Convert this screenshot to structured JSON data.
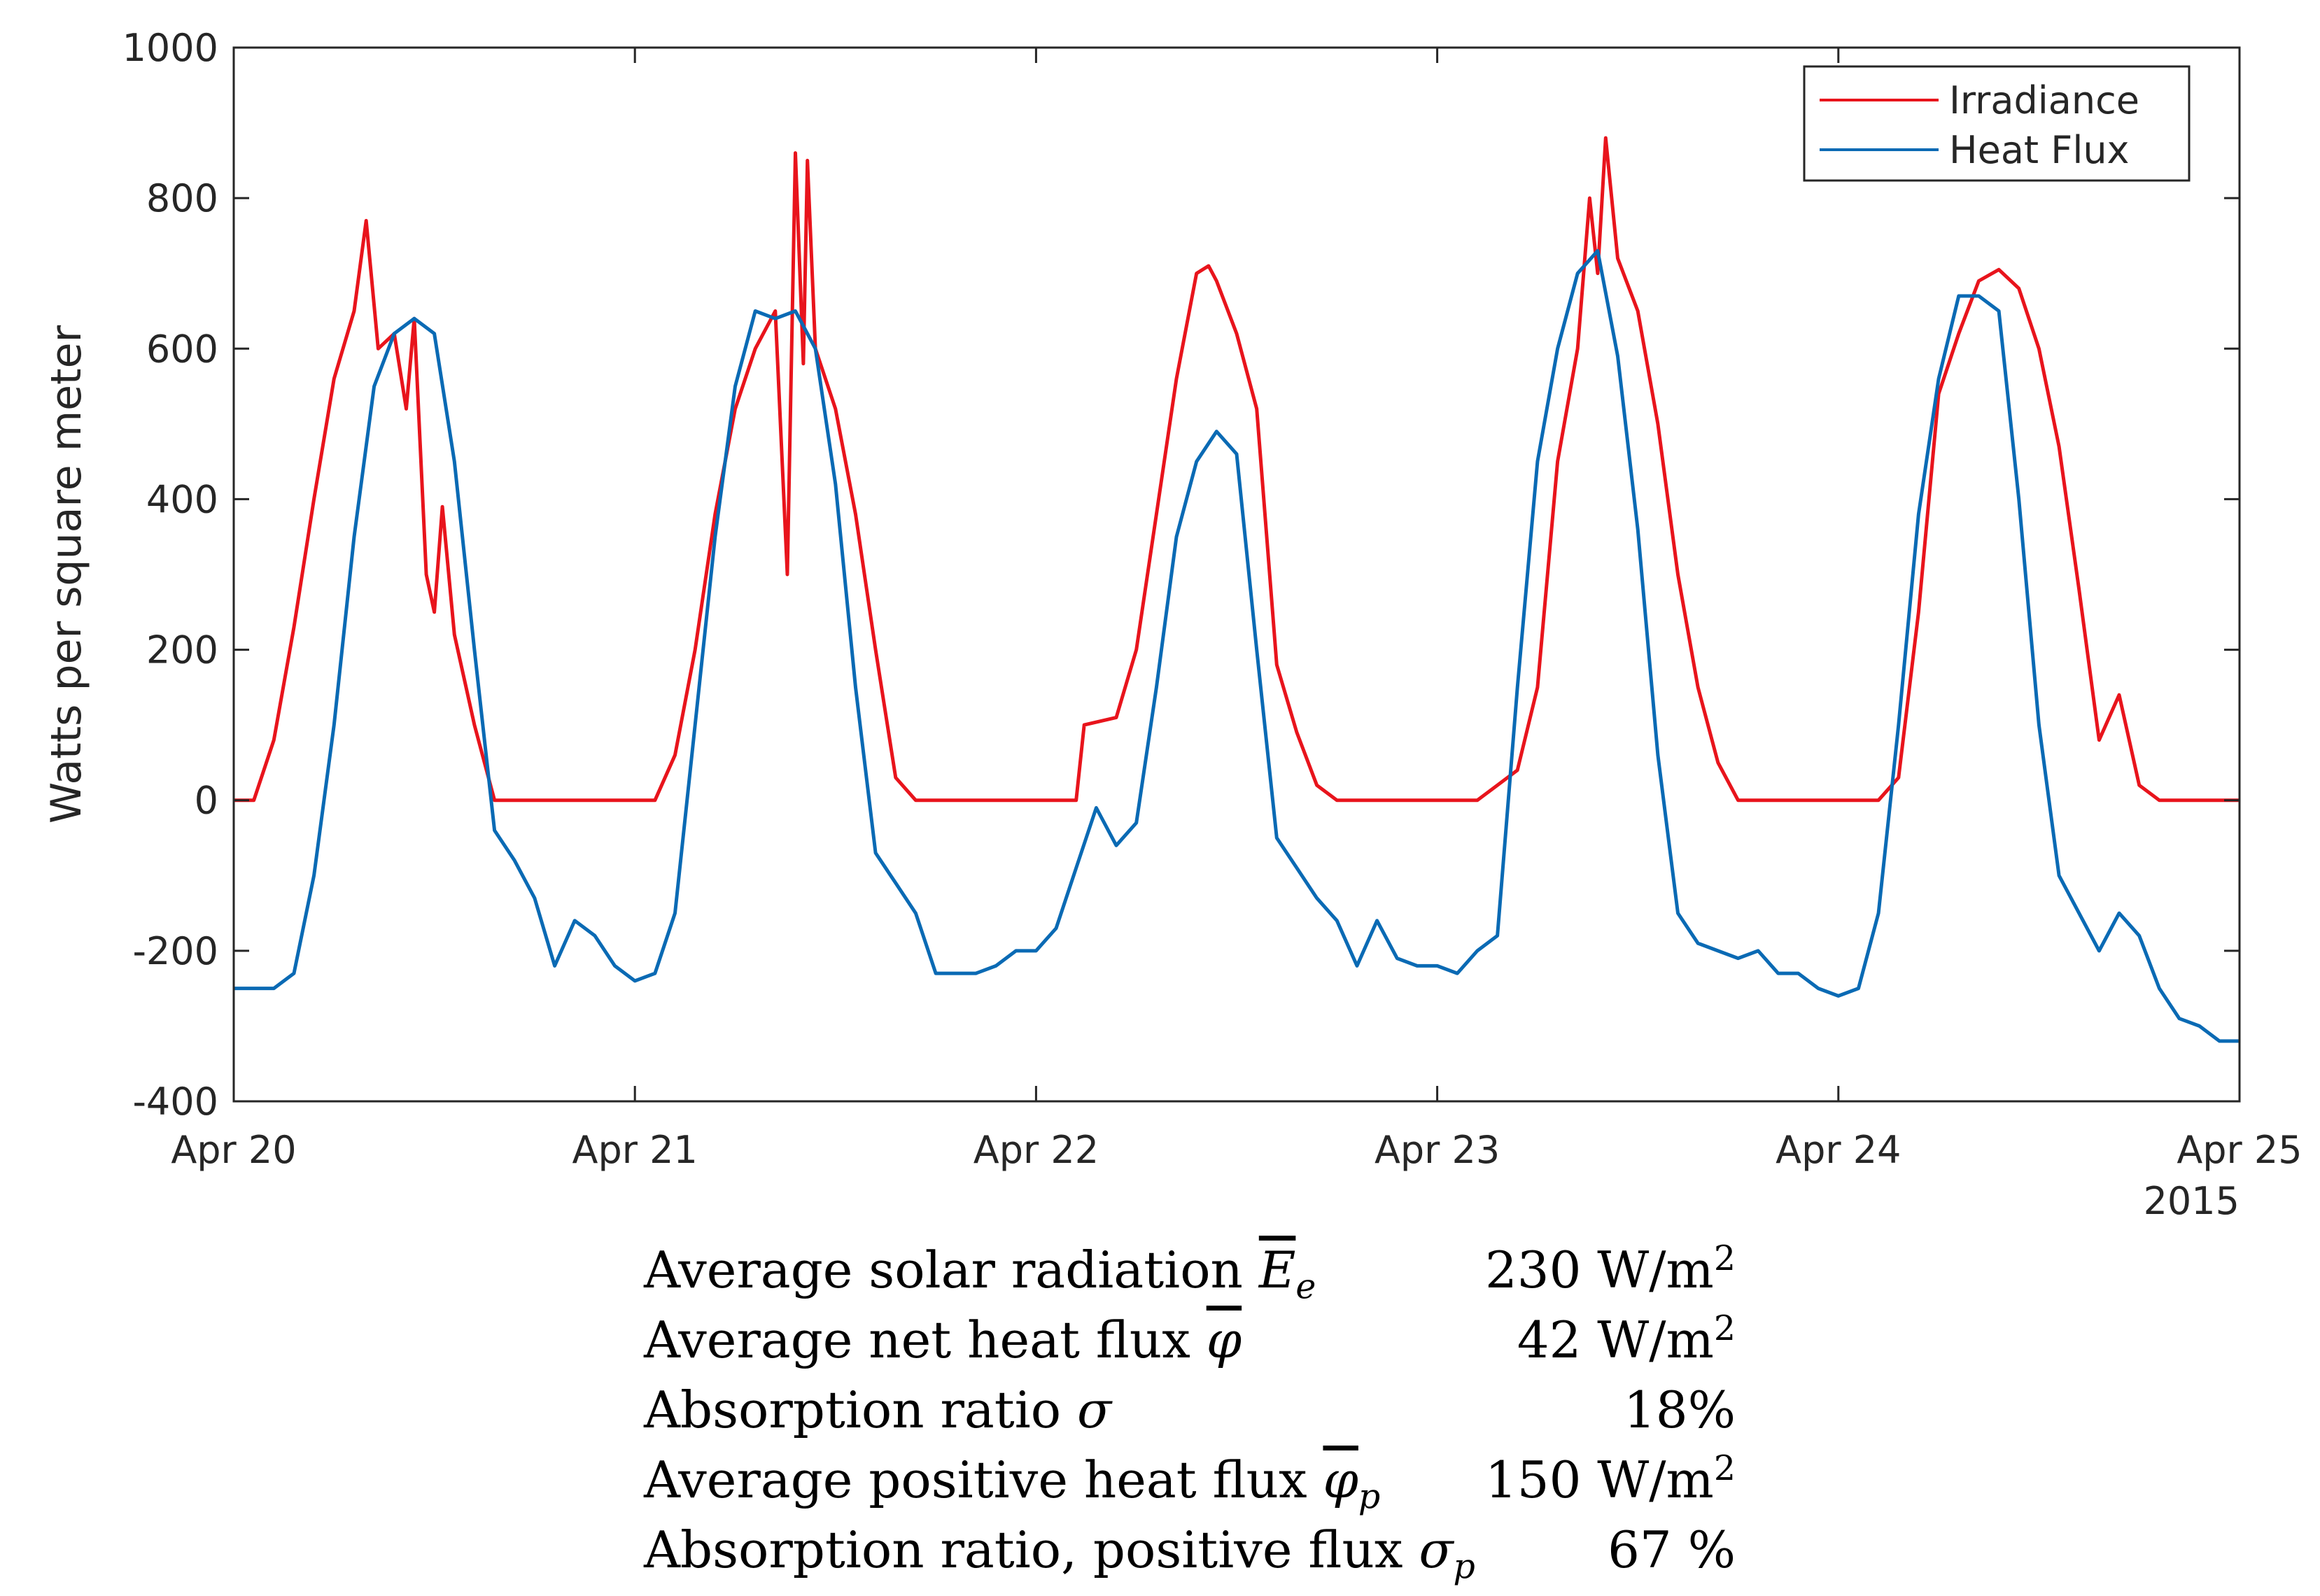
{
  "chart_data": {
    "type": "line",
    "title": "",
    "xlabel": "",
    "ylabel": "Watts per square meter",
    "xlim": [
      0,
      5
    ],
    "ylim": [
      -400,
      1000
    ],
    "x_ticks": [
      {
        "value": 0,
        "label": "Apr 20"
      },
      {
        "value": 1,
        "label": "Apr 21"
      },
      {
        "value": 2,
        "label": "Apr 22"
      },
      {
        "value": 3,
        "label": "Apr 23"
      },
      {
        "value": 4,
        "label": "Apr 24"
      },
      {
        "value": 5,
        "label": "Apr 25"
      }
    ],
    "x_secondary_label": "2015",
    "y_ticks": [
      -400,
      -200,
      0,
      200,
      400,
      600,
      800,
      1000
    ],
    "grid": false,
    "legend_position": "top-right",
    "series": [
      {
        "name": "Irradiance",
        "color": "#e8141c",
        "x": [
          0,
          0.05,
          0.1,
          0.15,
          0.2,
          0.25,
          0.3,
          0.33,
          0.36,
          0.4,
          0.43,
          0.45,
          0.48,
          0.5,
          0.52,
          0.55,
          0.6,
          0.65,
          0.7,
          0.75,
          0.8,
          0.9,
          1.0,
          1.05,
          1.1,
          1.15,
          1.2,
          1.25,
          1.3,
          1.35,
          1.38,
          1.4,
          1.42,
          1.43,
          1.45,
          1.5,
          1.55,
          1.6,
          1.65,
          1.7,
          1.75,
          1.8,
          1.9,
          2.0,
          2.1,
          2.12,
          2.2,
          2.25,
          2.3,
          2.35,
          2.4,
          2.43,
          2.45,
          2.5,
          2.55,
          2.6,
          2.65,
          2.7,
          2.75,
          2.8,
          2.9,
          3.0,
          3.1,
          3.15,
          3.2,
          3.25,
          3.3,
          3.35,
          3.38,
          3.4,
          3.42,
          3.45,
          3.5,
          3.55,
          3.6,
          3.65,
          3.7,
          3.75,
          3.8,
          3.9,
          4.0,
          4.1,
          4.15,
          4.2,
          4.25,
          4.3,
          4.35,
          4.4,
          4.45,
          4.5,
          4.55,
          4.6,
          4.65,
          4.7,
          4.75,
          4.8,
          4.9,
          5.0
        ],
        "values": [
          0,
          0,
          80,
          230,
          400,
          560,
          650,
          770,
          600,
          620,
          520,
          640,
          300,
          250,
          390,
          220,
          100,
          0,
          0,
          0,
          0,
          0,
          0,
          0,
          60,
          200,
          380,
          520,
          600,
          650,
          300,
          860,
          580,
          850,
          600,
          520,
          380,
          200,
          30,
          0,
          0,
          0,
          0,
          0,
          0,
          100,
          110,
          200,
          380,
          560,
          700,
          710,
          690,
          620,
          520,
          180,
          90,
          20,
          0,
          0,
          0,
          0,
          0,
          20,
          40,
          150,
          450,
          600,
          800,
          700,
          880,
          720,
          650,
          500,
          300,
          150,
          50,
          0,
          0,
          0,
          0,
          0,
          30,
          250,
          540,
          620,
          690,
          705,
          680,
          600,
          470,
          280,
          80,
          140,
          20,
          0,
          0,
          0
        ]
      },
      {
        "name": "Heat Flux",
        "color": "#0a6ab4",
        "x": [
          0,
          0.1,
          0.15,
          0.2,
          0.25,
          0.3,
          0.35,
          0.4,
          0.45,
          0.5,
          0.55,
          0.6,
          0.65,
          0.7,
          0.75,
          0.8,
          0.85,
          0.9,
          0.95,
          1.0,
          1.05,
          1.1,
          1.15,
          1.2,
          1.25,
          1.3,
          1.35,
          1.4,
          1.45,
          1.5,
          1.55,
          1.6,
          1.65,
          1.7,
          1.75,
          1.8,
          1.85,
          1.9,
          1.95,
          2.0,
          2.05,
          2.1,
          2.15,
          2.2,
          2.25,
          2.3,
          2.35,
          2.4,
          2.45,
          2.5,
          2.55,
          2.6,
          2.65,
          2.7,
          2.75,
          2.8,
          2.85,
          2.9,
          2.95,
          3.0,
          3.05,
          3.1,
          3.15,
          3.2,
          3.25,
          3.3,
          3.35,
          3.4,
          3.45,
          3.5,
          3.55,
          3.6,
          3.65,
          3.7,
          3.75,
          3.8,
          3.85,
          3.9,
          3.95,
          4.0,
          4.05,
          4.1,
          4.15,
          4.2,
          4.25,
          4.3,
          4.35,
          4.4,
          4.45,
          4.5,
          4.55,
          4.6,
          4.65,
          4.7,
          4.75,
          4.8,
          4.85,
          4.9,
          4.95,
          5.0
        ],
        "values": [
          -250,
          -250,
          -230,
          -100,
          100,
          350,
          550,
          620,
          640,
          620,
          450,
          200,
          -40,
          -80,
          -130,
          -220,
          -160,
          -180,
          -220,
          -240,
          -230,
          -150,
          100,
          350,
          550,
          650,
          640,
          650,
          600,
          420,
          150,
          -70,
          -110,
          -150,
          -230,
          -230,
          -230,
          -220,
          -200,
          -200,
          -170,
          -90,
          -10,
          -60,
          -30,
          150,
          350,
          450,
          490,
          460,
          200,
          -50,
          -90,
          -130,
          -160,
          -220,
          -160,
          -210,
          -220,
          -220,
          -230,
          -200,
          -180,
          150,
          450,
          600,
          700,
          730,
          590,
          360,
          60,
          -150,
          -190,
          -200,
          -210,
          -200,
          -230,
          -230,
          -250,
          -260,
          -250,
          -150,
          100,
          380,
          560,
          670,
          670,
          650,
          400,
          100,
          -100,
          -150,
          -200,
          -150,
          -180,
          -250,
          -290,
          -300,
          -320,
          -320
        ]
      }
    ]
  },
  "summary": {
    "rows": [
      {
        "label": "Average solar radiation",
        "symbol": "E",
        "sub": "e",
        "overline": true,
        "value": "230 W/m",
        "sup": "2"
      },
      {
        "label": "Average net heat flux",
        "symbol": "φ",
        "sub": "",
        "overline": true,
        "value": "42 W/m",
        "sup": "2"
      },
      {
        "label": "Absorption ratio",
        "symbol": "σ",
        "sub": "",
        "overline": false,
        "value": "18%",
        "sup": ""
      },
      {
        "label": "Average positive heat flux",
        "symbol": "φ",
        "sub": "p",
        "overline": true,
        "value": "150 W/m",
        "sup": "2"
      },
      {
        "label": "Absorption ratio, positive flux",
        "symbol": "σ",
        "sub": "p",
        "overline": false,
        "value": "67 %",
        "sup": ""
      }
    ]
  }
}
